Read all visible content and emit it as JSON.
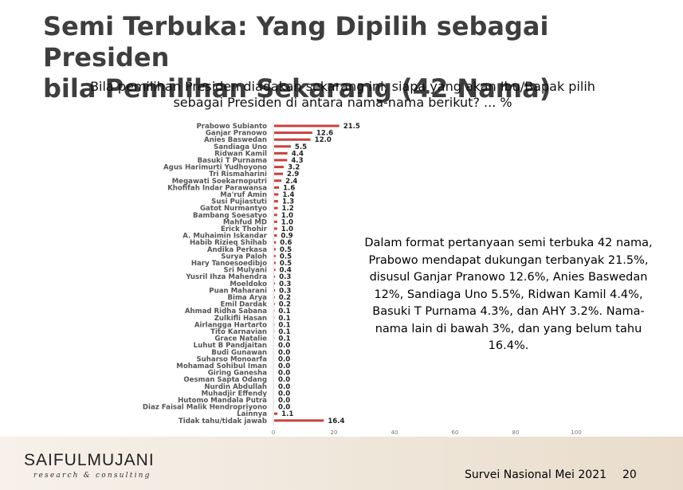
{
  "title_line1": "Semi Terbuka: Yang Dipilih sebagai Presiden",
  "title_line2": "bila Pemilihan Sekarang (42 Nama)",
  "subtitle_line1": "Bila pemilihan Presiden diadakan sekarang ini, siapa yang akan Ibu/Bapak pilih",
  "subtitle_line2": "sebagai Presiden di antara nama-nama berikut? ... %",
  "note": "Dalam format pertanyaan semi terbuka 42 nama, Prabowo mendapat dukungan terbanyak 21.5%, disusul Ganjar Pranowo 12.6%, Anies Baswedan 12%, Sandiaga Uno 5.5%, Ridwan Kamil 4.4%, Basuki T Purnama 4.3%, dan AHY 3.2%. Nama-nama lain di bawah 3%, dan yang belum tahu 16.4%.",
  "footer": {
    "logo_name": "SAIFULMUJANI",
    "logo_sub": "research & consulting",
    "survey": "Survei Nasional Mei 2021",
    "page": "20"
  },
  "colors": {
    "bar": "#c9413f",
    "title": "#3e3e3e"
  },
  "chart_data": {
    "type": "bar",
    "orientation": "horizontal",
    "categories": [
      "Prabowo Subianto",
      "Ganjar Pranowo",
      "Anies Baswedan",
      "Sandiaga Uno",
      "Ridwan Kamil",
      "Basuki T Purnama",
      "Agus Harimurti Yudhoyono",
      "Tri Rismaharini",
      "Megawati Soekarnoputri",
      "Khofifah Indar Parawansa",
      "Ma'ruf Amin",
      "Susi Pujiastuti",
      "Gatot Nurmantyo",
      "Bambang Soesatyo",
      "Mahfud MD",
      "Erick Thohir",
      "A. Muhaimin Iskandar",
      "Habib Rizieq Shihab",
      "Andika Perkasa",
      "Surya Paloh",
      "Hary Tanoesoedibjo",
      "Sri Mulyani",
      "Yusril Ihza Mahendra",
      "Moeldoko",
      "Puan Maharani",
      "Bima Arya",
      "Emil Dardak",
      "Ahmad Ridha Sabana",
      "Zulkifli Hasan",
      "Airlangga Hartarto",
      "Tito Karnavian",
      "Grace Natalie",
      "Luhut B Pandjaitan",
      "Budi Gunawan",
      "Suharso Monoarfa",
      "Mohamad Sohibul Iman",
      "Giring Ganesha",
      "Oesman Sapta Odang",
      "Nurdin Abdullah",
      "Muhadjir Effendy",
      "Hutomo Mandala Putra",
      "Diaz Faisal Malik Hendropriyono",
      "Lainnya",
      "Tidak tahu/tidak jawab"
    ],
    "values": [
      21.5,
      12.6,
      12.0,
      5.5,
      4.4,
      4.3,
      3.2,
      2.9,
      2.4,
      1.6,
      1.4,
      1.3,
      1.2,
      1.0,
      1.0,
      1.0,
      0.9,
      0.6,
      0.5,
      0.5,
      0.5,
      0.4,
      0.3,
      0.3,
      0.3,
      0.2,
      0.2,
      0.1,
      0.1,
      0.1,
      0.1,
      0.1,
      0.0,
      0.0,
      0.0,
      0.0,
      0.0,
      0.0,
      0.0,
      0.0,
      0.0,
      0.0,
      1.1,
      16.4
    ],
    "value_labels": [
      "21.5",
      "12.6",
      "12.0",
      "5.5",
      "4.4",
      "4.3",
      "3.2",
      "2.9",
      "2.4",
      "1.6",
      "1.4",
      "1.3",
      "1.2",
      "1.0",
      "1.0",
      "1.0",
      "0.9",
      "0.6",
      "0.5",
      "0.5",
      "0.5",
      "0.4",
      "0.3",
      "0.3",
      "0.3",
      "0.2",
      "0.2",
      "0.1",
      "0.1",
      "0.1",
      "0.1",
      "0.1",
      "0.0",
      "0.0",
      "0.0",
      "0.0",
      "0.0",
      "0.0",
      "0.0",
      "0.0",
      "0.0",
      "0.0",
      "1.1",
      "16.4"
    ],
    "xlim": [
      0,
      100
    ],
    "xticks": [
      "0",
      "20",
      "40",
      "60",
      "80",
      "100"
    ],
    "grid": false,
    "legend": "none"
  }
}
